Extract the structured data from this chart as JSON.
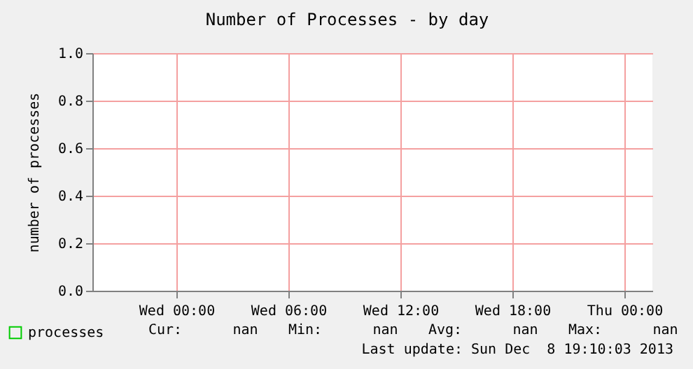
{
  "chart_data": {
    "type": "line",
    "title": "Number of Processes - by day",
    "ylabel": "number of processes",
    "categories": [
      null,
      null,
      null,
      null,
      "Wed 00:00",
      null,
      null,
      null,
      null,
      null,
      "Wed 06:00",
      null,
      null,
      null,
      null,
      null,
      "Wed 12:00",
      null,
      null,
      null,
      null,
      null,
      "Wed 18:00",
      null,
      null,
      null,
      null,
      null,
      "Thu 00:00",
      null
    ],
    "series": [
      {
        "name": "processes",
        "color": "#00cc00",
        "values": [
          null,
          null,
          null,
          null,
          null,
          null,
          null,
          null,
          null,
          null,
          null,
          null,
          null,
          null,
          null,
          null,
          null,
          null,
          null,
          null,
          null,
          null,
          null,
          null,
          null,
          null,
          null,
          null,
          null,
          null
        ]
      }
    ],
    "ylim": [
      0,
      1
    ],
    "yticks": [
      {
        "value": 0,
        "label": "0.0"
      },
      0.2,
      0.4,
      0.6,
      0.8,
      {
        "value": 1,
        "label": "1.0"
      }
    ],
    "grid": true,
    "legend": "bottom left",
    "annotations": [
      "Cur:      nan",
      "Min:      nan",
      "Avg:      nan",
      "Max:      nan",
      "Last update: Sun Dec  8 19:10:03 2013"
    ]
  }
}
